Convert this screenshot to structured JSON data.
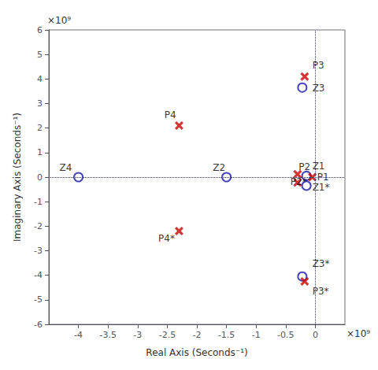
{
  "chart_data": {
    "type": "scatter",
    "xlabel": "Real Axis (Seconds⁻¹)",
    "ylabel": "Imaginary Axis (Seconds⁻¹)",
    "xlim": [
      -4.5,
      0.5
    ],
    "ylim": [
      -6.0,
      6.0
    ],
    "xticks": [
      -4.0,
      -3.5,
      -3.0,
      -2.5,
      -2.0,
      -1.5,
      -1.0,
      -0.5,
      0.0
    ],
    "yticks": [
      -6,
      -5,
      -4,
      -3,
      -2,
      -1,
      0,
      1,
      2,
      3,
      4,
      5,
      6
    ],
    "grid": false,
    "hline_y": 0.0,
    "vline_x": 0.0,
    "annotations": [
      "×10⁹",
      "×10⁹"
    ],
    "series": [
      {
        "marker": "o",
        "color": "#1a1aaa",
        "x": [
          -0.15,
          -0.15,
          -1.5,
          -0.22,
          -0.22,
          -4.0
        ],
        "y": [
          0.05,
          -0.35,
          0.0,
          3.65,
          -4.05,
          0.0
        ],
        "labels": [
          "Z1",
          "Z1*",
          "Z2",
          "Z3",
          "Z3*",
          "Z4"
        ],
        "label_x": [
          -0.05,
          -0.05,
          -1.73,
          -0.05,
          -0.05,
          -4.32
        ],
        "label_y": [
          0.25,
          -0.62,
          0.18,
          3.42,
          -3.72,
          0.2
        ]
      },
      {
        "marker": "x",
        "color": "#cc0000",
        "x": [
          -0.05,
          -0.3,
          -0.3,
          -0.18,
          -0.18,
          -2.3,
          -2.3
        ],
        "y": [
          0.0,
          0.12,
          -0.22,
          4.1,
          -4.25,
          2.1,
          -2.2
        ],
        "labels": [
          "P1",
          "P2",
          "P2*",
          "P3",
          "P3*",
          "P4",
          "P4*"
        ],
        "label_x": [
          0.03,
          -0.28,
          -0.42,
          -0.05,
          -0.05,
          -2.55,
          -2.65
        ],
        "label_y": [
          0.0,
          0.22,
          -0.38,
          4.35,
          -4.85,
          2.35,
          -2.7
        ]
      }
    ]
  }
}
